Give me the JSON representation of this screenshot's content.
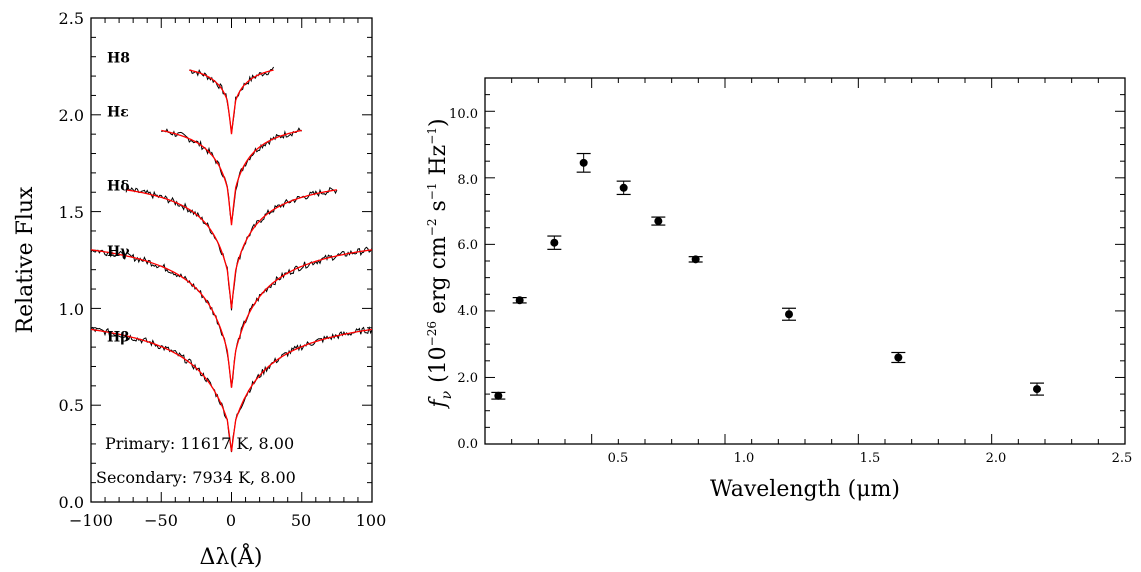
{
  "chart_data": [
    {
      "type": "line",
      "xlabel": "Δλ(Å)",
      "ylabel": "Relative Flux",
      "xlim": [
        -100,
        100
      ],
      "ylim": [
        0.0,
        2.5
      ],
      "xticks": [
        "−100",
        "−50",
        "0",
        "50",
        "100"
      ],
      "yticks": [
        "0.0",
        "0.5",
        "1.0",
        "1.5",
        "2.0",
        "2.5"
      ],
      "series": [
        {
          "name": "H8",
          "range": [
            -30,
            30
          ],
          "continuum": 2.29,
          "depth": 0.3,
          "width": 7
        },
        {
          "name": "Hε",
          "range": [
            -50,
            50
          ],
          "continuum": 2.0,
          "depth": 0.48,
          "width": 10
        },
        {
          "name": "Hδ",
          "range": [
            -75,
            75
          ],
          "continuum": 1.7,
          "depth": 0.61,
          "width": 13
        },
        {
          "name": "Hγ",
          "range": [
            -100,
            100
          ],
          "continuum": 1.4,
          "depth": 0.72,
          "width": 17
        },
        {
          "name": "Hβ",
          "range": [
            -100,
            100
          ],
          "continuum": 1.0,
          "depth": 0.65,
          "width": 22
        }
      ],
      "line_label_offsets": [
        2.27,
        1.99,
        1.61,
        1.27,
        0.83
      ],
      "model_color": "#ff0000",
      "observed_color": "#000000",
      "annotations": [
        "Primary:  11617 K, 8.00",
        "Secondary:   7934 K, 8.00"
      ]
    },
    {
      "type": "scatter",
      "xlabel": "Wavelength (μm)",
      "ylabel_parts": {
        "f": "f",
        "nu": "ν",
        "text": "(10",
        "exp1": "−26",
        "mid": " erg cm",
        "exp2": "−2",
        "s": " s",
        "exp3": "−1",
        "hz": " Hz",
        "exp4": "−1",
        "close": ")"
      },
      "xlim": [
        0.1,
        2.5
      ],
      "ylim": [
        0.0,
        11.0
      ],
      "xticks": [
        "0.5",
        "1.0",
        "1.5",
        "2.0",
        "2.5"
      ],
      "yticks": [
        "0.0",
        "2.0",
        "4.0",
        "6.0",
        "8.0",
        "10.0"
      ],
      "points": [
        {
          "x": 0.15,
          "y": 1.45,
          "err": 0.1
        },
        {
          "x": 0.23,
          "y": 4.32,
          "err": 0.08
        },
        {
          "x": 0.36,
          "y": 6.05,
          "err": 0.2
        },
        {
          "x": 0.47,
          "y": 8.45,
          "err": 0.28
        },
        {
          "x": 0.62,
          "y": 7.7,
          "err": 0.2
        },
        {
          "x": 0.75,
          "y": 6.7,
          "err": 0.12
        },
        {
          "x": 0.89,
          "y": 5.55,
          "err": 0.08
        },
        {
          "x": 1.24,
          "y": 3.9,
          "err": 0.18
        },
        {
          "x": 1.65,
          "y": 2.6,
          "err": 0.15
        },
        {
          "x": 2.17,
          "y": 1.65,
          "err": 0.18
        }
      ]
    }
  ]
}
